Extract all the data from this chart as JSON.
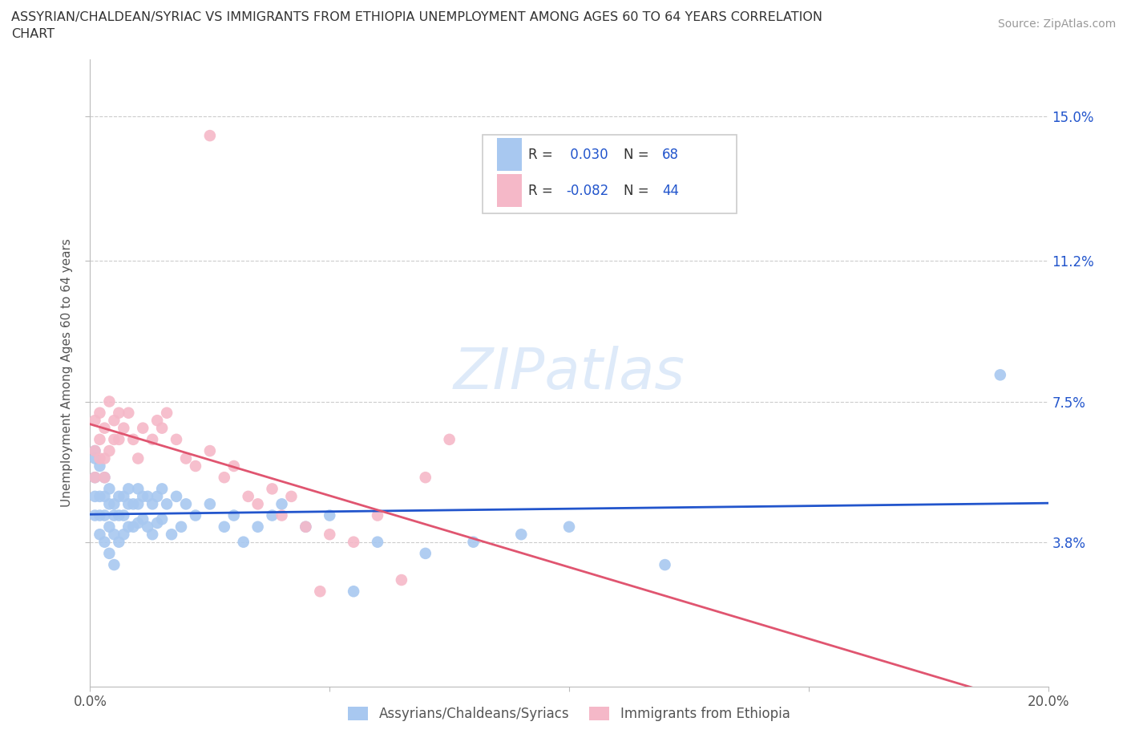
{
  "title_line1": "ASSYRIAN/CHALDEAN/SYRIAC VS IMMIGRANTS FROM ETHIOPIA UNEMPLOYMENT AMONG AGES 60 TO 64 YEARS CORRELATION",
  "title_line2": "CHART",
  "source_text": "Source: ZipAtlas.com",
  "ylabel": "Unemployment Among Ages 60 to 64 years",
  "xlim": [
    0.0,
    0.2
  ],
  "ylim": [
    0.0,
    0.165
  ],
  "ytick_positions": [
    0.038,
    0.075,
    0.112,
    0.15
  ],
  "ytick_labels": [
    "3.8%",
    "7.5%",
    "11.2%",
    "15.0%"
  ],
  "series1_color": "#a8c8f0",
  "series2_color": "#f5b8c8",
  "line1_color": "#2255cc",
  "line2_color": "#e05570",
  "R1": 0.03,
  "N1": 68,
  "R2": -0.082,
  "N2": 44,
  "legend_label1": "Assyrians/Chaldeans/Syriacs",
  "legend_label2": "Immigrants from Ethiopia",
  "watermark": "ZIPatlas",
  "series1_x": [
    0.001,
    0.001,
    0.001,
    0.001,
    0.001,
    0.002,
    0.002,
    0.002,
    0.002,
    0.003,
    0.003,
    0.003,
    0.003,
    0.004,
    0.004,
    0.004,
    0.004,
    0.005,
    0.005,
    0.005,
    0.005,
    0.006,
    0.006,
    0.006,
    0.007,
    0.007,
    0.007,
    0.008,
    0.008,
    0.008,
    0.009,
    0.009,
    0.01,
    0.01,
    0.01,
    0.011,
    0.011,
    0.012,
    0.012,
    0.013,
    0.013,
    0.014,
    0.014,
    0.015,
    0.015,
    0.016,
    0.017,
    0.018,
    0.019,
    0.02,
    0.022,
    0.025,
    0.028,
    0.03,
    0.032,
    0.035,
    0.038,
    0.04,
    0.045,
    0.05,
    0.055,
    0.06,
    0.07,
    0.08,
    0.09,
    0.1,
    0.12,
    0.19
  ],
  "series1_y": [
    0.06,
    0.062,
    0.055,
    0.05,
    0.045,
    0.058,
    0.05,
    0.045,
    0.04,
    0.055,
    0.05,
    0.045,
    0.038,
    0.052,
    0.048,
    0.042,
    0.035,
    0.048,
    0.045,
    0.04,
    0.032,
    0.05,
    0.045,
    0.038,
    0.05,
    0.045,
    0.04,
    0.052,
    0.048,
    0.042,
    0.048,
    0.042,
    0.052,
    0.048,
    0.043,
    0.05,
    0.044,
    0.05,
    0.042,
    0.048,
    0.04,
    0.05,
    0.043,
    0.052,
    0.044,
    0.048,
    0.04,
    0.05,
    0.042,
    0.048,
    0.045,
    0.048,
    0.042,
    0.045,
    0.038,
    0.042,
    0.045,
    0.048,
    0.042,
    0.045,
    0.025,
    0.038,
    0.035,
    0.038,
    0.04,
    0.042,
    0.032,
    0.082
  ],
  "series2_x": [
    0.001,
    0.001,
    0.001,
    0.002,
    0.002,
    0.002,
    0.003,
    0.003,
    0.003,
    0.004,
    0.004,
    0.005,
    0.005,
    0.006,
    0.006,
    0.007,
    0.008,
    0.009,
    0.01,
    0.011,
    0.013,
    0.014,
    0.015,
    0.016,
    0.018,
    0.02,
    0.022,
    0.025,
    0.028,
    0.03,
    0.033,
    0.035,
    0.038,
    0.04,
    0.042,
    0.045,
    0.048,
    0.05,
    0.055,
    0.06,
    0.065,
    0.07,
    0.075,
    0.025
  ],
  "series2_y": [
    0.055,
    0.062,
    0.07,
    0.06,
    0.065,
    0.072,
    0.055,
    0.06,
    0.068,
    0.062,
    0.075,
    0.065,
    0.07,
    0.072,
    0.065,
    0.068,
    0.072,
    0.065,
    0.06,
    0.068,
    0.065,
    0.07,
    0.068,
    0.072,
    0.065,
    0.06,
    0.058,
    0.062,
    0.055,
    0.058,
    0.05,
    0.048,
    0.052,
    0.045,
    0.05,
    0.042,
    0.025,
    0.04,
    0.038,
    0.045,
    0.028,
    0.055,
    0.065,
    0.145
  ]
}
